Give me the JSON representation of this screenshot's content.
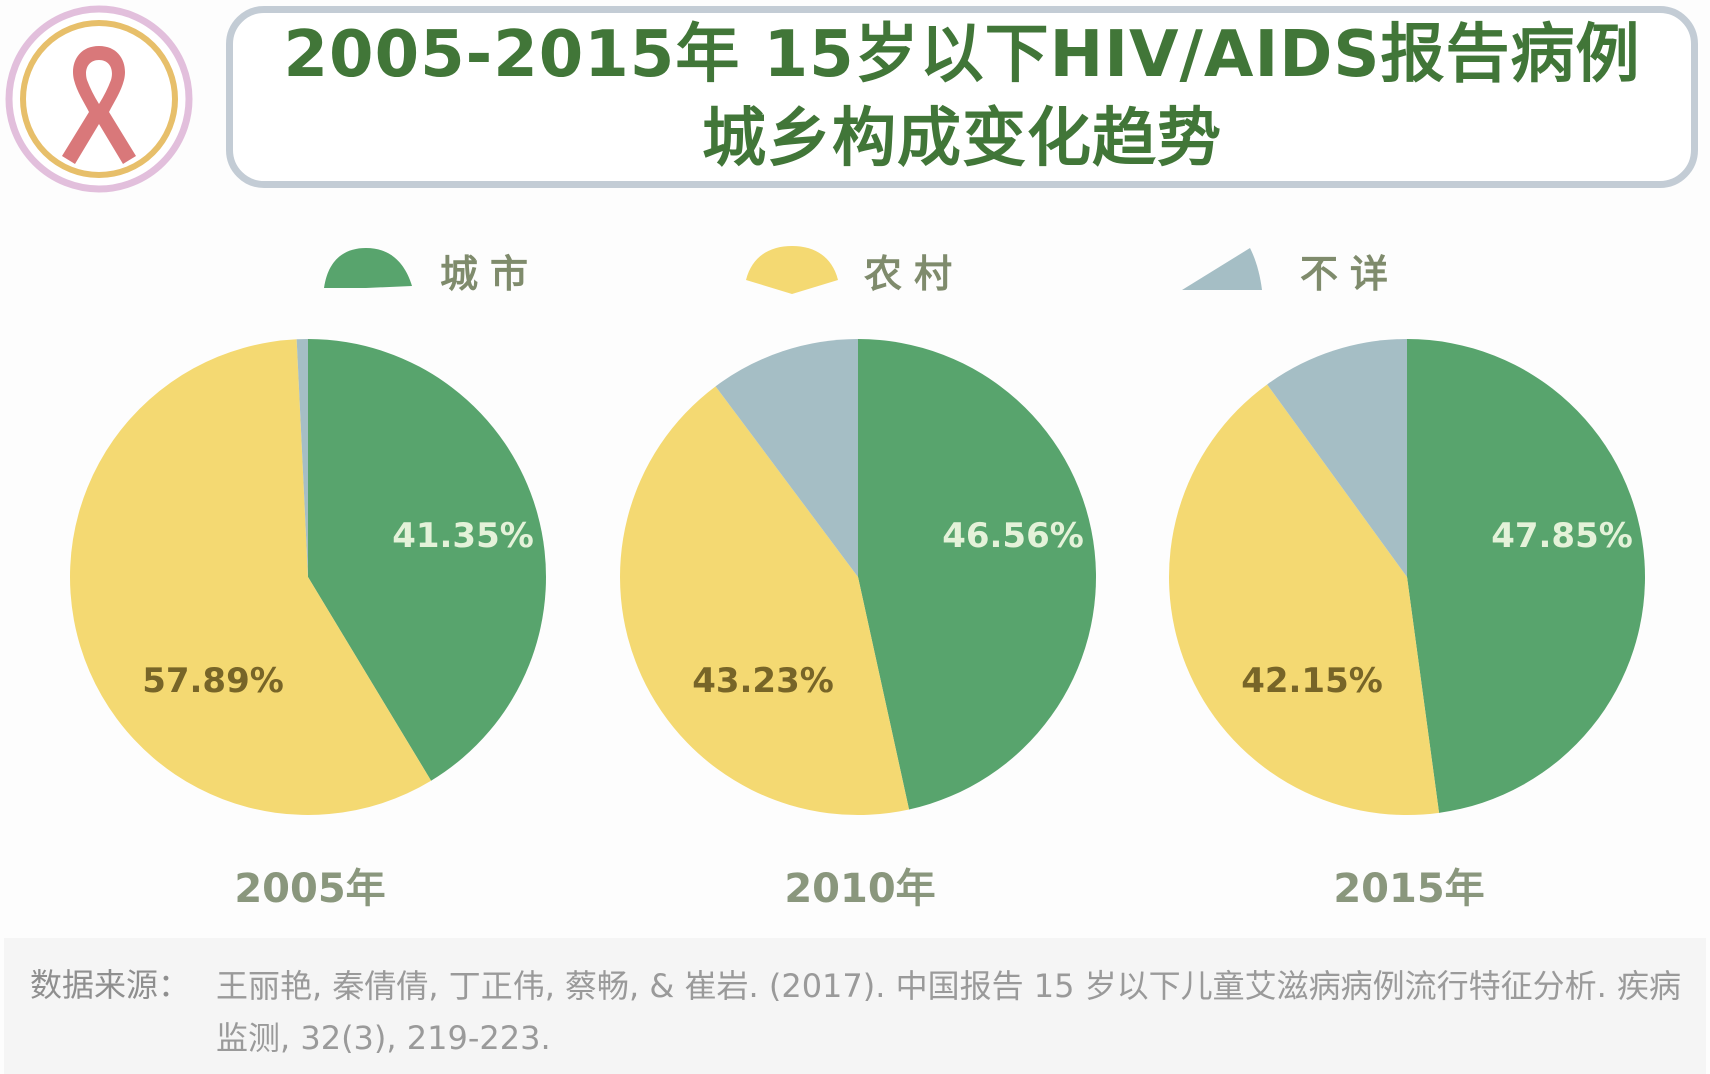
{
  "title": {
    "line1": "2005-2015年 15岁以下HIV/AIDS报告病例",
    "line2": "城乡构成变化趋势"
  },
  "logo": {
    "icon": "aids-ribbon-icon"
  },
  "colors": {
    "urban": "#58a46d",
    "rural": "#f4d972",
    "unknown": "#a5bec5",
    "urban_label": "#e4f2d9",
    "rural_label": "#776528",
    "title": "#417638"
  },
  "legend": [
    {
      "key": "urban",
      "label": "城市"
    },
    {
      "key": "rural",
      "label": "农村"
    },
    {
      "key": "unknown",
      "label": "不详"
    }
  ],
  "chart_data": [
    {
      "type": "pie",
      "title": "2005年",
      "categories": [
        "城市",
        "农村",
        "不详"
      ],
      "values": [
        41.35,
        57.89,
        0.76
      ],
      "labels": [
        "41.35%",
        "57.89%",
        ""
      ],
      "legend": "top"
    },
    {
      "type": "pie",
      "title": "2010年",
      "categories": [
        "城市",
        "农村",
        "不详"
      ],
      "values": [
        46.56,
        43.23,
        10.21
      ],
      "labels": [
        "46.56%",
        "43.23%",
        ""
      ],
      "legend": "top"
    },
    {
      "type": "pie",
      "title": "2015年",
      "categories": [
        "城市",
        "农村",
        "不详"
      ],
      "values": [
        47.85,
        42.15,
        10.0
      ],
      "labels": [
        "47.85%",
        "42.15%",
        ""
      ],
      "legend": "top"
    }
  ],
  "footer": {
    "label": "数据来源：",
    "text": "王丽艳, 秦倩倩, 丁正伟, 蔡畅, & 崔岩. (2017). 中国报告 15 岁以下儿童艾滋病病例流行特征分析. 疾病监测, 32(3), 219-223."
  }
}
